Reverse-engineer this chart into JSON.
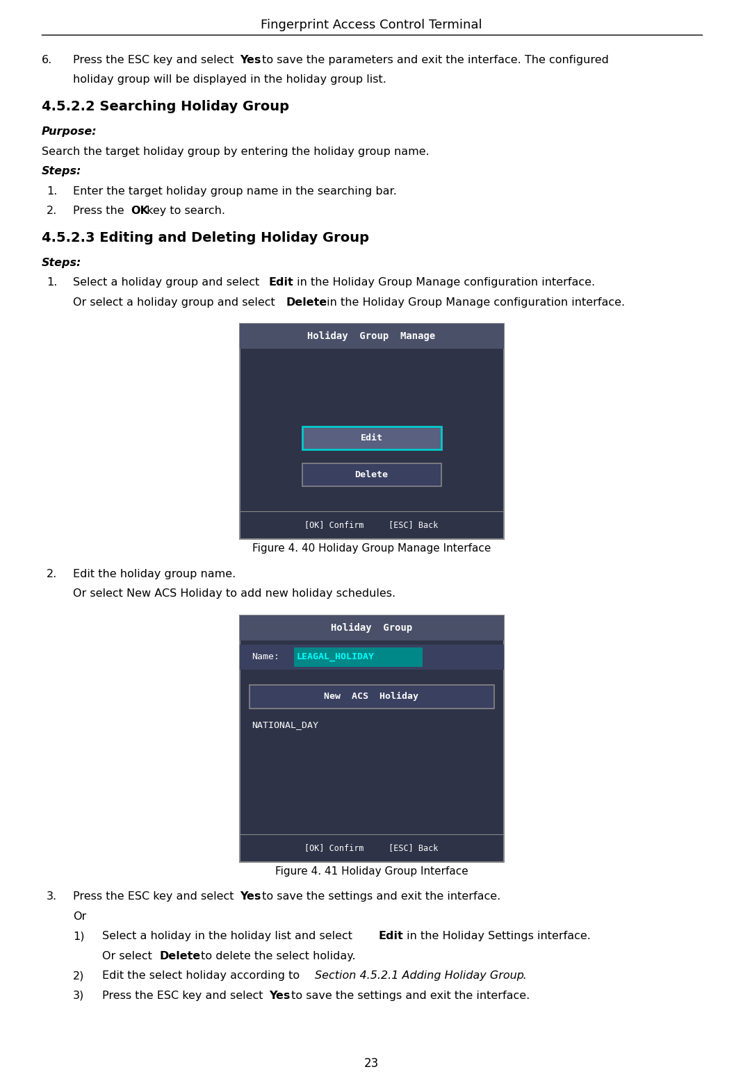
{
  "title": "Fingerprint Access Control Terminal",
  "page_number": "23",
  "bg_color": "#ffffff",
  "figsize": [
    10.69,
    15.72
  ],
  "dpi": 100,
  "screen1": {
    "title": "Holiday  Group  Manage",
    "title_bg": "#4a5068",
    "body_bg": "#2e3347",
    "footer_text": "[OK] Confirm     [ESC] Back",
    "edit_label": "Edit",
    "edit_border": "#00cccc",
    "edit_fill": "#5a6080",
    "delete_label": "Delete",
    "delete_border": "#888888",
    "delete_fill": "#3a4060"
  },
  "screen2": {
    "title": "Holiday  Group",
    "title_bg": "#4a5068",
    "body_bg": "#2e3347",
    "footer_text": "[OK] Confirm     [ESC] Back",
    "name_label": "Name:",
    "name_value": "LEAGAL_HOLIDAY",
    "name_value_color": "#00ffff",
    "name_value_bg": "#008888",
    "button_label": "New  ACS  Holiday",
    "button_border": "#888888",
    "button_fill": "#3a4060",
    "list_item": "NATIONAL_DAY"
  },
  "fig_caption1": "Figure 4. 40 Holiday Group Manage Interface",
  "fig_caption2": "Figure 4. 41 Holiday Group Interface"
}
